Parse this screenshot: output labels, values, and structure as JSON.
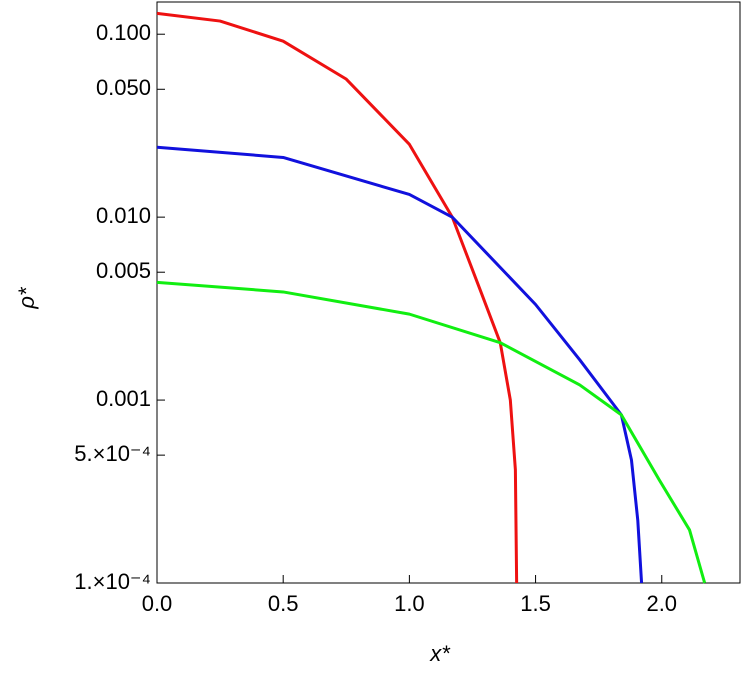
{
  "chart_data": {
    "type": "line",
    "xlabel": "x*",
    "ylabel": "ρ*",
    "log_y": true,
    "xlim": [
      0,
      2.31
    ],
    "ylim": [
      0.0001,
      0.15
    ],
    "xticks": [
      {
        "value": 0,
        "label": "0.0"
      },
      {
        "value": 0.5,
        "label": "0.5"
      },
      {
        "value": 1,
        "label": "1.0"
      },
      {
        "value": 1.5,
        "label": "1.5"
      },
      {
        "value": 2,
        "label": "2.0"
      }
    ],
    "yticks": [
      {
        "value": 0.1,
        "label": "0.100"
      },
      {
        "value": 0.05,
        "label": "0.050"
      },
      {
        "value": 0.01,
        "label": "0.010"
      },
      {
        "value": 0.005,
        "label": "0.005"
      },
      {
        "value": 0.001,
        "label": "0.001"
      },
      {
        "value": 0.0005,
        "label": "5.×10⁻⁴"
      },
      {
        "value": 0.0001,
        "label": "1.×10⁻⁴"
      }
    ],
    "series": [
      {
        "color": "#ee1111",
        "x": [
          0,
          0.25,
          0.5,
          0.75,
          1.0,
          1.17,
          1.28,
          1.36,
          1.4,
          1.42,
          1.425
        ],
        "values": [
          0.13,
          0.118,
          0.0916,
          0.0568,
          0.025,
          0.01,
          0.00402,
          0.00206,
          0.001,
          0.000416,
          0.0001
        ]
      },
      {
        "color": "#1111dd",
        "x": [
          0,
          0.5,
          1.0,
          1.17,
          1.5,
          1.675,
          1.84,
          1.88,
          1.905,
          1.92
        ],
        "values": [
          0.0241,
          0.0212,
          0.0133,
          0.01,
          0.00333,
          0.00166,
          0.00083,
          0.00047,
          0.00022,
          0.0001
        ]
      },
      {
        "color": "#11ee11",
        "x": [
          0,
          0.5,
          1.0,
          1.36,
          1.675,
          1.84,
          1.99,
          2.11,
          2.17
        ],
        "values": [
          0.0044,
          0.0039,
          0.00295,
          0.00206,
          0.00121,
          0.00083,
          0.000366,
          0.000195,
          0.0001
        ]
      }
    ]
  }
}
